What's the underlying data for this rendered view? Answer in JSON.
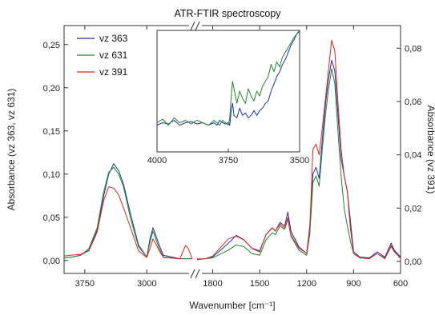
{
  "chart_data": {
    "type": "line",
    "title": "ATR-FTIR spectroscopy",
    "xlabel": "Wavenumber [cm⁻¹]",
    "ylabel_left": "Absorbance (vz 363, vz 631)",
    "ylabel_right": "Absorbance (vz 391)",
    "x_axis": {
      "direction": "reversed",
      "break_between": [
        2450,
        1900
      ],
      "segments": [
        [
          4000,
          2450
        ],
        [
          1900,
          600
        ]
      ],
      "ticks": [
        3750,
        3000,
        1800,
        1500,
        1200,
        900,
        600
      ]
    },
    "ylim_left": [
      -0.015,
      0.272
    ],
    "yticks_left": [
      "0,00",
      "0,05",
      "0,10",
      "0,15",
      "0,20",
      "0,25"
    ],
    "ylim_right": [
      -0.0045,
      0.0885
    ],
    "yticks_right": [
      "0,00",
      "0,02",
      "0,04",
      "0,06",
      "0,08"
    ],
    "legend_position": "top-left",
    "series": [
      {
        "name": "vz 363",
        "color": "#1f2fb0",
        "axis": "left",
        "points": [
          [
            4000,
            0.003
          ],
          [
            3900,
            0.004
          ],
          [
            3800,
            0.006
          ],
          [
            3700,
            0.012
          ],
          [
            3600,
            0.035
          ],
          [
            3520,
            0.075
          ],
          [
            3460,
            0.1
          ],
          [
            3400,
            0.112
          ],
          [
            3340,
            0.104
          ],
          [
            3280,
            0.088
          ],
          [
            3200,
            0.055
          ],
          [
            3100,
            0.018
          ],
          [
            3000,
            0.004
          ],
          [
            2960,
            0.026
          ],
          [
            2925,
            0.038
          ],
          [
            2880,
            0.026
          ],
          [
            2850,
            0.018
          ],
          [
            2800,
            0.006
          ],
          [
            2600,
            0.002
          ],
          [
            2450,
            0.002
          ],
          [
            1900,
            0.001
          ],
          [
            1850,
            0.002
          ],
          [
            1800,
            0.004
          ],
          [
            1700,
            0.02
          ],
          [
            1650,
            0.029
          ],
          [
            1600,
            0.024
          ],
          [
            1550,
            0.014
          ],
          [
            1500,
            0.01
          ],
          [
            1460,
            0.03
          ],
          [
            1420,
            0.038
          ],
          [
            1400,
            0.034
          ],
          [
            1370,
            0.044
          ],
          [
            1340,
            0.04
          ],
          [
            1320,
            0.056
          ],
          [
            1300,
            0.034
          ],
          [
            1250,
            0.016
          ],
          [
            1200,
            0.008
          ],
          [
            1180,
            0.04
          ],
          [
            1160,
            0.1
          ],
          [
            1140,
            0.108
          ],
          [
            1120,
            0.095
          ],
          [
            1100,
            0.14
          ],
          [
            1080,
            0.18
          ],
          [
            1060,
            0.21
          ],
          [
            1040,
            0.232
          ],
          [
            1020,
            0.22
          ],
          [
            1000,
            0.17
          ],
          [
            980,
            0.118
          ],
          [
            960,
            0.098
          ],
          [
            940,
            0.08
          ],
          [
            920,
            0.045
          ],
          [
            900,
            0.01
          ],
          [
            860,
            0.004
          ],
          [
            800,
            0.003
          ],
          [
            750,
            0.01
          ],
          [
            700,
            0.004
          ],
          [
            660,
            0.02
          ],
          [
            640,
            0.012
          ],
          [
            600,
            0.004
          ]
        ]
      },
      {
        "name": "vz 631",
        "color": "#1d8a2a",
        "axis": "left",
        "points": [
          [
            4000,
            0.003
          ],
          [
            3900,
            0.004
          ],
          [
            3800,
            0.006
          ],
          [
            3700,
            0.014
          ],
          [
            3600,
            0.038
          ],
          [
            3520,
            0.08
          ],
          [
            3460,
            0.102
          ],
          [
            3400,
            0.108
          ],
          [
            3340,
            0.1
          ],
          [
            3280,
            0.085
          ],
          [
            3200,
            0.05
          ],
          [
            3100,
            0.016
          ],
          [
            3000,
            0.004
          ],
          [
            2960,
            0.022
          ],
          [
            2925,
            0.034
          ],
          [
            2880,
            0.022
          ],
          [
            2850,
            0.014
          ],
          [
            2800,
            0.004
          ],
          [
            2600,
            0.002
          ],
          [
            2450,
            0.002
          ],
          [
            1900,
            0.001
          ],
          [
            1850,
            0.002
          ],
          [
            1800,
            0.003
          ],
          [
            1700,
            0.012
          ],
          [
            1650,
            0.018
          ],
          [
            1600,
            0.016
          ],
          [
            1550,
            0.008
          ],
          [
            1500,
            0.006
          ],
          [
            1460,
            0.024
          ],
          [
            1420,
            0.032
          ],
          [
            1400,
            0.03
          ],
          [
            1370,
            0.04
          ],
          [
            1340,
            0.036
          ],
          [
            1320,
            0.048
          ],
          [
            1300,
            0.028
          ],
          [
            1250,
            0.012
          ],
          [
            1200,
            0.006
          ],
          [
            1180,
            0.03
          ],
          [
            1160,
            0.09
          ],
          [
            1140,
            0.098
          ],
          [
            1120,
            0.086
          ],
          [
            1100,
            0.128
          ],
          [
            1080,
            0.168
          ],
          [
            1060,
            0.198
          ],
          [
            1040,
            0.222
          ],
          [
            1020,
            0.205
          ],
          [
            1000,
            0.15
          ],
          [
            980,
            0.098
          ],
          [
            960,
            0.06
          ],
          [
            940,
            0.04
          ],
          [
            920,
            0.022
          ],
          [
            900,
            0.008
          ],
          [
            860,
            0.003
          ],
          [
            800,
            0.002
          ],
          [
            750,
            0.008
          ],
          [
            700,
            0.003
          ],
          [
            660,
            0.016
          ],
          [
            640,
            0.01
          ],
          [
            600,
            0.003
          ]
        ]
      },
      {
        "name": "vz 391",
        "color": "#e8231c",
        "axis": "right",
        "points": [
          [
            4000,
            0.002
          ],
          [
            3900,
            0.0024
          ],
          [
            3800,
            0.0026
          ],
          [
            3700,
            0.004
          ],
          [
            3600,
            0.011
          ],
          [
            3520,
            0.023
          ],
          [
            3460,
            0.028
          ],
          [
            3400,
            0.0275
          ],
          [
            3340,
            0.025
          ],
          [
            3280,
            0.02
          ],
          [
            3200,
            0.013
          ],
          [
            3100,
            0.004
          ],
          [
            3000,
            0.0015
          ],
          [
            2960,
            0.005
          ],
          [
            2925,
            0.0085
          ],
          [
            2880,
            0.006
          ],
          [
            2850,
            0.004
          ],
          [
            2800,
            0.0015
          ],
          [
            2600,
            0.001
          ],
          [
            2530,
            0.006
          ],
          [
            2500,
            0.005
          ],
          [
            2450,
            0.001
          ],
          [
            1900,
            0.001
          ],
          [
            1850,
            0.001
          ],
          [
            1800,
            0.002
          ],
          [
            1700,
            0.0085
          ],
          [
            1650,
            0.0095
          ],
          [
            1600,
            0.008
          ],
          [
            1550,
            0.005
          ],
          [
            1500,
            0.004
          ],
          [
            1460,
            0.01
          ],
          [
            1420,
            0.0125
          ],
          [
            1400,
            0.0115
          ],
          [
            1370,
            0.014
          ],
          [
            1340,
            0.0125
          ],
          [
            1320,
            0.0165
          ],
          [
            1300,
            0.01
          ],
          [
            1250,
            0.005
          ],
          [
            1200,
            0.003
          ],
          [
            1180,
            0.012
          ],
          [
            1160,
            0.042
          ],
          [
            1140,
            0.044
          ],
          [
            1120,
            0.04
          ],
          [
            1100,
            0.05
          ],
          [
            1080,
            0.061
          ],
          [
            1060,
            0.072
          ],
          [
            1040,
            0.083
          ],
          [
            1020,
            0.079
          ],
          [
            1000,
            0.06
          ],
          [
            980,
            0.042
          ],
          [
            960,
            0.032
          ],
          [
            940,
            0.026
          ],
          [
            920,
            0.012
          ],
          [
            900,
            0.003
          ],
          [
            860,
            0.0015
          ],
          [
            800,
            0.001
          ],
          [
            750,
            0.003
          ],
          [
            700,
            0.001
          ],
          [
            660,
            0.006
          ],
          [
            640,
            0.004
          ],
          [
            600,
            0.001
          ]
        ]
      }
    ],
    "inset": {
      "xlim": [
        4000,
        3500
      ],
      "xticks": [
        4000,
        3750,
        3500
      ],
      "series": [
        {
          "name": "vz 363",
          "color": "#1f2fb0",
          "points": [
            [
              4000,
              0.22
            ],
            [
              3980,
              0.24
            ],
            [
              3960,
              0.23
            ],
            [
              3940,
              0.26
            ],
            [
              3920,
              0.22
            ],
            [
              3900,
              0.24
            ],
            [
              3880,
              0.25
            ],
            [
              3860,
              0.23
            ],
            [
              3840,
              0.24
            ],
            [
              3820,
              0.22
            ],
            [
              3800,
              0.24
            ],
            [
              3790,
              0.22
            ],
            [
              3780,
              0.26
            ],
            [
              3770,
              0.24
            ],
            [
              3760,
              0.23
            ],
            [
              3750,
              0.24
            ],
            [
              3745,
              0.22
            ],
            [
              3740,
              0.34
            ],
            [
              3735,
              0.4
            ],
            [
              3730,
              0.3
            ],
            [
              3720,
              0.28
            ],
            [
              3710,
              0.36
            ],
            [
              3700,
              0.3
            ],
            [
              3690,
              0.32
            ],
            [
              3680,
              0.28
            ],
            [
              3670,
              0.3
            ],
            [
              3660,
              0.34
            ],
            [
              3650,
              0.3
            ],
            [
              3640,
              0.34
            ],
            [
              3630,
              0.36
            ],
            [
              3620,
              0.4
            ],
            [
              3610,
              0.42
            ],
            [
              3600,
              0.5
            ],
            [
              3590,
              0.56
            ],
            [
              3580,
              0.62
            ],
            [
              3570,
              0.66
            ],
            [
              3560,
              0.72
            ],
            [
              3550,
              0.76
            ],
            [
              3540,
              0.82
            ],
            [
              3530,
              0.88
            ],
            [
              3520,
              0.92
            ],
            [
              3510,
              0.97
            ],
            [
              3500,
              1.0
            ]
          ]
        },
        {
          "name": "vz 631",
          "color": "#1d8a2a",
          "points": [
            [
              4000,
              0.24
            ],
            [
              3980,
              0.27
            ],
            [
              3960,
              0.22
            ],
            [
              3940,
              0.28
            ],
            [
              3920,
              0.24
            ],
            [
              3900,
              0.26
            ],
            [
              3880,
              0.23
            ],
            [
              3860,
              0.26
            ],
            [
              3840,
              0.24
            ],
            [
              3820,
              0.22
            ],
            [
              3800,
              0.26
            ],
            [
              3790,
              0.24
            ],
            [
              3780,
              0.22
            ],
            [
              3770,
              0.26
            ],
            [
              3760,
              0.24
            ],
            [
              3750,
              0.22
            ],
            [
              3745,
              0.28
            ],
            [
              3740,
              0.46
            ],
            [
              3735,
              0.58
            ],
            [
              3730,
              0.52
            ],
            [
              3720,
              0.4
            ],
            [
              3710,
              0.5
            ],
            [
              3700,
              0.44
            ],
            [
              3690,
              0.4
            ],
            [
              3680,
              0.52
            ],
            [
              3670,
              0.46
            ],
            [
              3660,
              0.42
            ],
            [
              3650,
              0.5
            ],
            [
              3640,
              0.46
            ],
            [
              3630,
              0.54
            ],
            [
              3620,
              0.58
            ],
            [
              3610,
              0.62
            ],
            [
              3600,
              0.72
            ],
            [
              3590,
              0.66
            ],
            [
              3580,
              0.74
            ],
            [
              3570,
              0.7
            ],
            [
              3560,
              0.78
            ],
            [
              3550,
              0.82
            ],
            [
              3540,
              0.86
            ],
            [
              3530,
              0.9
            ],
            [
              3520,
              0.94
            ],
            [
              3510,
              0.97
            ],
            [
              3500,
              0.99
            ]
          ]
        }
      ]
    }
  }
}
